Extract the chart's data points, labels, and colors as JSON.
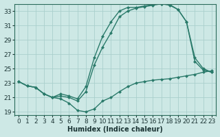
{
  "xlabel": "Humidex (Indice chaleur)",
  "background_color": "#cde8e5",
  "grid_color": "#aacfcc",
  "line_color": "#2a7a6a",
  "xlim": [
    -0.5,
    23.5
  ],
  "ylim": [
    18.5,
    34.0
  ],
  "xticks": [
    0,
    1,
    2,
    3,
    4,
    5,
    6,
    7,
    8,
    9,
    10,
    11,
    12,
    13,
    14,
    15,
    16,
    17,
    18,
    19,
    20,
    21,
    22,
    23
  ],
  "yticks": [
    19,
    21,
    23,
    25,
    27,
    29,
    31,
    33
  ],
  "line1_x": [
    0,
    1,
    2,
    3,
    4,
    5,
    6,
    7,
    8,
    9,
    10,
    11,
    12,
    13,
    14,
    15,
    16,
    17,
    18,
    19,
    20,
    21,
    22,
    23
  ],
  "line1_y": [
    23.2,
    22.6,
    22.4,
    21.5,
    21.0,
    20.8,
    20.2,
    19.2,
    19.0,
    19.4,
    20.5,
    21.0,
    21.8,
    22.5,
    23.0,
    23.2,
    23.4,
    23.5,
    23.6,
    23.8,
    24.0,
    24.2,
    24.5,
    24.7
  ],
  "line2_x": [
    0,
    1,
    2,
    3,
    4,
    5,
    6,
    7,
    8,
    9,
    10,
    11,
    12,
    13,
    14,
    15,
    16,
    17,
    18,
    19,
    20,
    21,
    22,
    23
  ],
  "line2_y": [
    23.2,
    22.6,
    22.4,
    21.5,
    21.0,
    21.2,
    21.0,
    20.5,
    21.8,
    25.5,
    28.0,
    30.0,
    32.2,
    33.0,
    33.4,
    33.6,
    33.8,
    34.0,
    33.8,
    33.2,
    31.5,
    26.0,
    24.8,
    24.5
  ],
  "line3_x": [
    0,
    1,
    2,
    3,
    4,
    5,
    6,
    7,
    8,
    9,
    10,
    11,
    12,
    13,
    14,
    15,
    16,
    17,
    18,
    19,
    20,
    21,
    22,
    23
  ],
  "line3_y": [
    23.2,
    22.6,
    22.4,
    21.5,
    21.0,
    21.5,
    21.2,
    20.8,
    22.5,
    26.5,
    29.5,
    31.5,
    33.0,
    33.5,
    33.5,
    33.7,
    33.9,
    34.0,
    33.9,
    33.2,
    31.5,
    26.5,
    25.0,
    24.5
  ],
  "marker_size": 2.5,
  "line_width": 1.0,
  "font_size": 6.5,
  "xlabel_fontsize": 7,
  "tick_color": "#1a3333",
  "spine_color": "#2a6a5a"
}
